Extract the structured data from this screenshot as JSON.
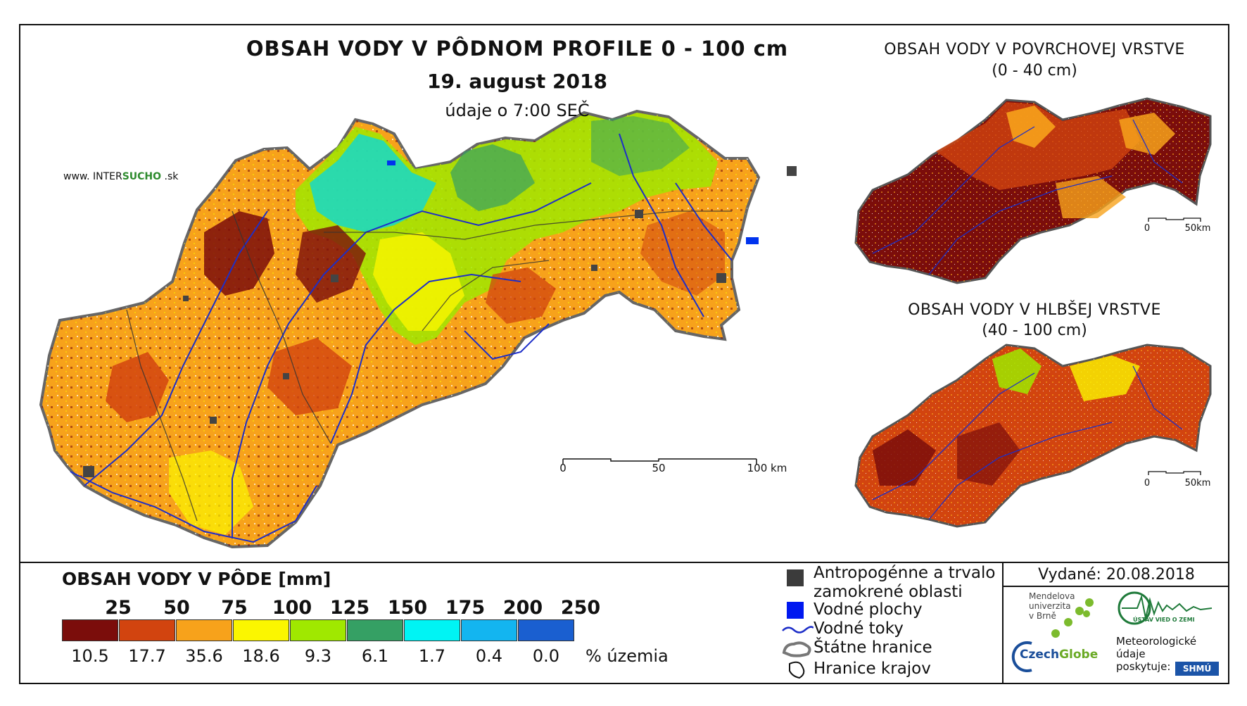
{
  "main": {
    "title": "OBSAH VODY V PÔDNOM PROFILE 0 - 100 cm",
    "date": "19. august 2018",
    "time_note": "údaje o 7:00 SEČ",
    "website": {
      "prefix": "www. INTER",
      "mid": "SUCHO",
      "suffix": " .sk"
    },
    "scale": {
      "labels": [
        "0",
        "50",
        "100 km"
      ]
    }
  },
  "inset_surface": {
    "title_line1": "OBSAH VODY V POVRCHOVEJ VRSTVE",
    "title_line2": "(0 - 40 cm)",
    "scale": {
      "labels": [
        "0",
        "50km"
      ]
    }
  },
  "inset_deep": {
    "title_line1": "OBSAH VODY V HLBŠEJ VRSTVE",
    "title_line2": "(40 - 100 cm)",
    "scale": {
      "labels": [
        "0",
        "50km"
      ]
    }
  },
  "legend": {
    "title": "OBSAH VODY V PÔDE [mm]",
    "thresholds": [
      "25",
      "50",
      "75",
      "100",
      "125",
      "150",
      "175",
      "200",
      "250"
    ],
    "classes": [
      {
        "color": "#7b0d0b",
        "pct": "10.5"
      },
      {
        "color": "#d2440f",
        "pct": "17.7"
      },
      {
        "color": "#f7a21b",
        "pct": "35.6"
      },
      {
        "color": "#fbf600",
        "pct": "18.6"
      },
      {
        "color": "#a0e800",
        "pct": "9.3"
      },
      {
        "color": "#35a064",
        "pct": "6.1"
      },
      {
        "color": "#00f4f4",
        "pct": "1.7"
      },
      {
        "color": "#13b5f0",
        "pct": "0.4"
      },
      {
        "color": "#1a5fd0",
        "pct": "0.0"
      }
    ],
    "pct_unit": "% územia"
  },
  "symbols": {
    "urban_line1": "Antropogénne a trvalo",
    "urban_line2": "zamokrené oblasti",
    "water_bodies": "Vodné plochy",
    "rivers": "Vodné toky",
    "state_border": "Štátne hranice",
    "region_border": "Hranice krajov"
  },
  "issued": "Vydané: 20.08.2018",
  "logos": {
    "mendel": [
      "Mendelova",
      "univerzita",
      "v Brně"
    ],
    "czechglobe_a": "Czech",
    "czechglobe_b": "Globe",
    "uvz": "ÚSTAV VIED O ZEMI",
    "meteo": [
      "Meteorologické",
      "údaje",
      "poskytuje:"
    ],
    "shmu": "SHMÚ"
  }
}
